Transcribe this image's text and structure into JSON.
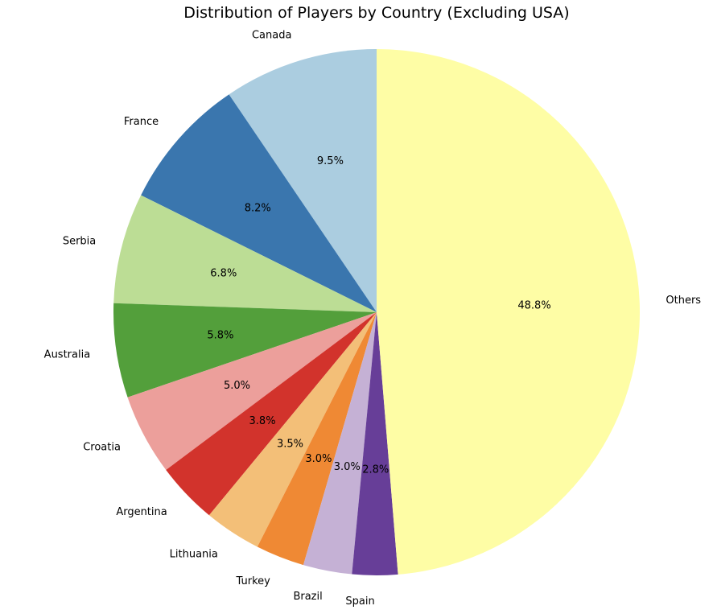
{
  "chart_data": {
    "type": "pie",
    "title": "Distribution of Players by Country (Excluding USA)",
    "start_angle_deg": 90,
    "direction": "counterclockwise",
    "legend": "none",
    "slices": [
      {
        "label": "Canada",
        "percent_label": "9.5%",
        "value": 9.5,
        "color": "#abcde0"
      },
      {
        "label": "France",
        "percent_label": "8.2%",
        "value": 8.2,
        "color": "#3a76ae"
      },
      {
        "label": "Serbia",
        "percent_label": "6.8%",
        "value": 6.8,
        "color": "#bcdd95"
      },
      {
        "label": "Australia",
        "percent_label": "5.8%",
        "value": 5.8,
        "color": "#539f3b"
      },
      {
        "label": "Croatia",
        "percent_label": "5.0%",
        "value": 5.0,
        "color": "#ec9f9b"
      },
      {
        "label": "Argentina",
        "percent_label": "3.8%",
        "value": 3.8,
        "color": "#d2332c"
      },
      {
        "label": "Lithuania",
        "percent_label": "3.5%",
        "value": 3.5,
        "color": "#f3bf78"
      },
      {
        "label": "Turkey",
        "percent_label": "3.0%",
        "value": 3.0,
        "color": "#ef8934"
      },
      {
        "label": "Brazil",
        "percent_label": "3.0%",
        "value": 3.0,
        "color": "#c5b1d5"
      },
      {
        "label": "Spain",
        "percent_label": "2.8%",
        "value": 2.8,
        "color": "#673e98"
      },
      {
        "label": "Others",
        "percent_label": "48.8%",
        "value": 48.8,
        "color": "#fefda5"
      }
    ]
  }
}
